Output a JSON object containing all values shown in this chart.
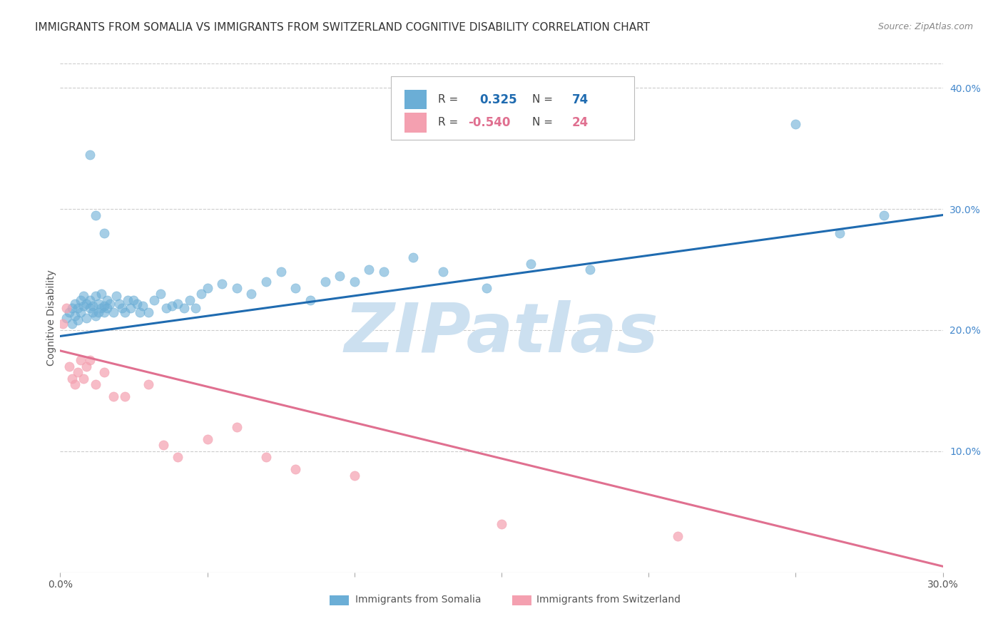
{
  "title": "IMMIGRANTS FROM SOMALIA VS IMMIGRANTS FROM SWITZERLAND COGNITIVE DISABILITY CORRELATION CHART",
  "source": "Source: ZipAtlas.com",
  "ylabel": "Cognitive Disability",
  "xlabel_somalia": "Immigrants from Somalia",
  "xlabel_switzerland": "Immigrants from Switzerland",
  "xlim": [
    0.0,
    0.3
  ],
  "ylim": [
    0.0,
    0.42
  ],
  "xticks": [
    0.0,
    0.05,
    0.1,
    0.15,
    0.2,
    0.25,
    0.3
  ],
  "yticks_right": [
    0.1,
    0.2,
    0.3,
    0.4
  ],
  "ytick_labels_right": [
    "10.0%",
    "20.0%",
    "30.0%",
    "40.0%"
  ],
  "somalia_color": "#6baed6",
  "switzerland_color": "#f4a0b0",
  "somalia_line_color": "#1f6bb0",
  "switzerland_line_color": "#e07090",
  "somalia_R": "0.325",
  "somalia_N": "74",
  "switzerland_R": "-0.540",
  "switzerland_N": "24",
  "somalia_scatter_x": [
    0.002,
    0.003,
    0.004,
    0.004,
    0.005,
    0.005,
    0.006,
    0.006,
    0.007,
    0.007,
    0.008,
    0.008,
    0.009,
    0.009,
    0.01,
    0.01,
    0.011,
    0.011,
    0.012,
    0.012,
    0.013,
    0.013,
    0.014,
    0.014,
    0.015,
    0.015,
    0.016,
    0.016,
    0.017,
    0.018,
    0.019,
    0.02,
    0.021,
    0.022,
    0.023,
    0.024,
    0.025,
    0.026,
    0.027,
    0.028,
    0.03,
    0.032,
    0.034,
    0.036,
    0.038,
    0.04,
    0.042,
    0.044,
    0.046,
    0.048,
    0.05,
    0.055,
    0.06,
    0.065,
    0.07,
    0.075,
    0.08,
    0.085,
    0.09,
    0.095,
    0.1,
    0.105,
    0.11,
    0.12,
    0.13,
    0.145,
    0.16,
    0.18,
    0.25,
    0.265,
    0.01,
    0.012,
    0.015,
    0.28
  ],
  "somalia_scatter_y": [
    0.21,
    0.215,
    0.218,
    0.205,
    0.212,
    0.222,
    0.208,
    0.218,
    0.215,
    0.225,
    0.22,
    0.228,
    0.21,
    0.222,
    0.218,
    0.225,
    0.215,
    0.22,
    0.212,
    0.228,
    0.215,
    0.222,
    0.218,
    0.23,
    0.22,
    0.215,
    0.225,
    0.218,
    0.222,
    0.215,
    0.228,
    0.222,
    0.218,
    0.215,
    0.225,
    0.218,
    0.225,
    0.222,
    0.215,
    0.22,
    0.215,
    0.225,
    0.23,
    0.218,
    0.22,
    0.222,
    0.218,
    0.225,
    0.218,
    0.23,
    0.235,
    0.238,
    0.235,
    0.23,
    0.24,
    0.248,
    0.235,
    0.225,
    0.24,
    0.245,
    0.24,
    0.25,
    0.248,
    0.26,
    0.248,
    0.235,
    0.255,
    0.25,
    0.37,
    0.28,
    0.345,
    0.295,
    0.28,
    0.295
  ],
  "switzerland_scatter_x": [
    0.001,
    0.002,
    0.003,
    0.004,
    0.005,
    0.006,
    0.007,
    0.008,
    0.009,
    0.01,
    0.012,
    0.015,
    0.018,
    0.022,
    0.03,
    0.035,
    0.04,
    0.05,
    0.06,
    0.07,
    0.08,
    0.1,
    0.15,
    0.21
  ],
  "switzerland_scatter_y": [
    0.205,
    0.218,
    0.17,
    0.16,
    0.155,
    0.165,
    0.175,
    0.16,
    0.17,
    0.175,
    0.155,
    0.165,
    0.145,
    0.145,
    0.155,
    0.105,
    0.095,
    0.11,
    0.12,
    0.095,
    0.085,
    0.08,
    0.04,
    0.03
  ],
  "somalia_line_x0": 0.0,
  "somalia_line_x1": 0.3,
  "somalia_line_y0": 0.195,
  "somalia_line_y1": 0.295,
  "switzerland_line_x0": 0.0,
  "switzerland_line_x1": 0.3,
  "switzerland_line_y0": 0.183,
  "switzerland_line_y1": 0.005,
  "background_color": "#ffffff",
  "grid_color": "#cccccc",
  "title_fontsize": 11,
  "axis_label_fontsize": 10,
  "tick_fontsize": 10,
  "watermark_text": "ZIPatlas",
  "watermark_color": "#cce0f0",
  "watermark_fontsize": 70
}
